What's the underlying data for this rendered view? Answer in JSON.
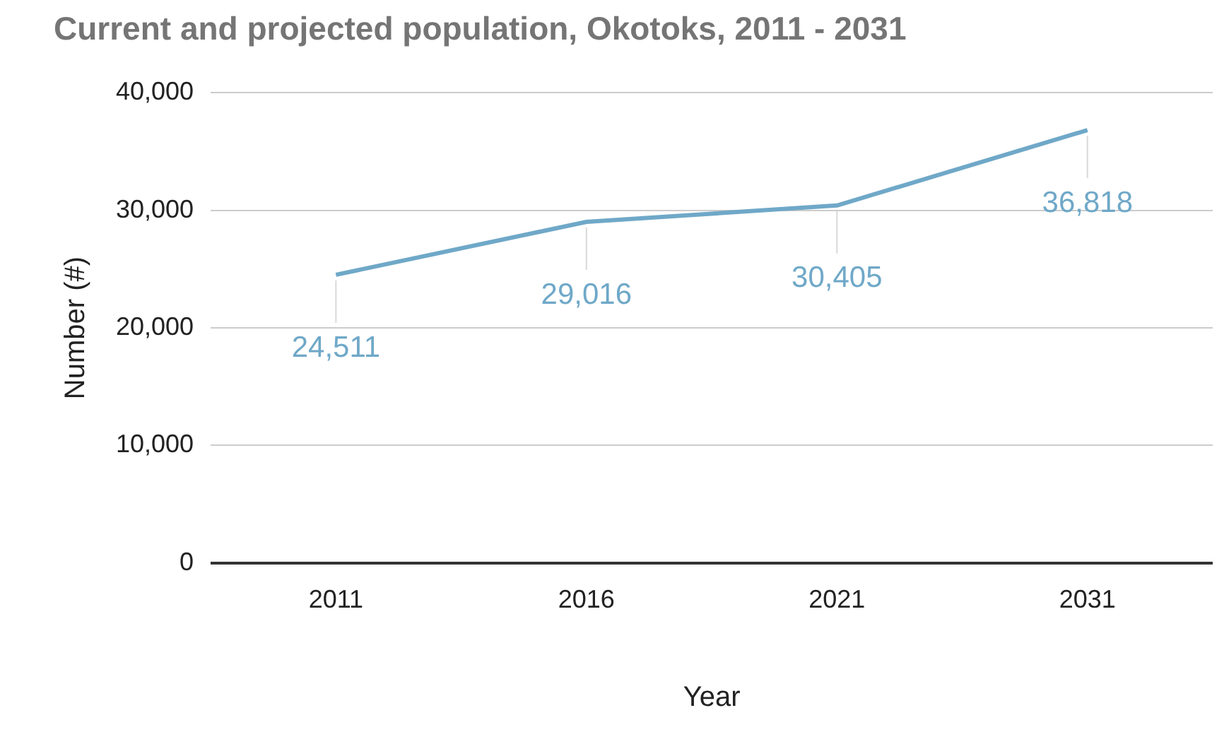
{
  "chart_data": {
    "type": "line",
    "title": "Current and projected population, Okotoks, 2011 - 2031",
    "xlabel": "Year",
    "ylabel": "Number (#)",
    "categories": [
      "2011",
      "2016",
      "2021",
      "2031"
    ],
    "series": [
      {
        "color": "#6fa8c8",
        "values": [
          24511,
          29016,
          30405,
          36818
        ],
        "value_labels": [
          "24,511",
          "29,016",
          "30,405",
          "36,818"
        ]
      }
    ],
    "ylim": [
      0,
      40000
    ],
    "yticks": [
      0,
      {
        "value": 10000,
        "label": "10,000"
      },
      {
        "value": 20000,
        "label": "20,000"
      },
      {
        "value": 30000,
        "label": "30,000"
      },
      {
        "value": 40000,
        "label": "40,000"
      }
    ],
    "grid": "y",
    "legend": false,
    "marker": "none",
    "line_style": "solid"
  }
}
